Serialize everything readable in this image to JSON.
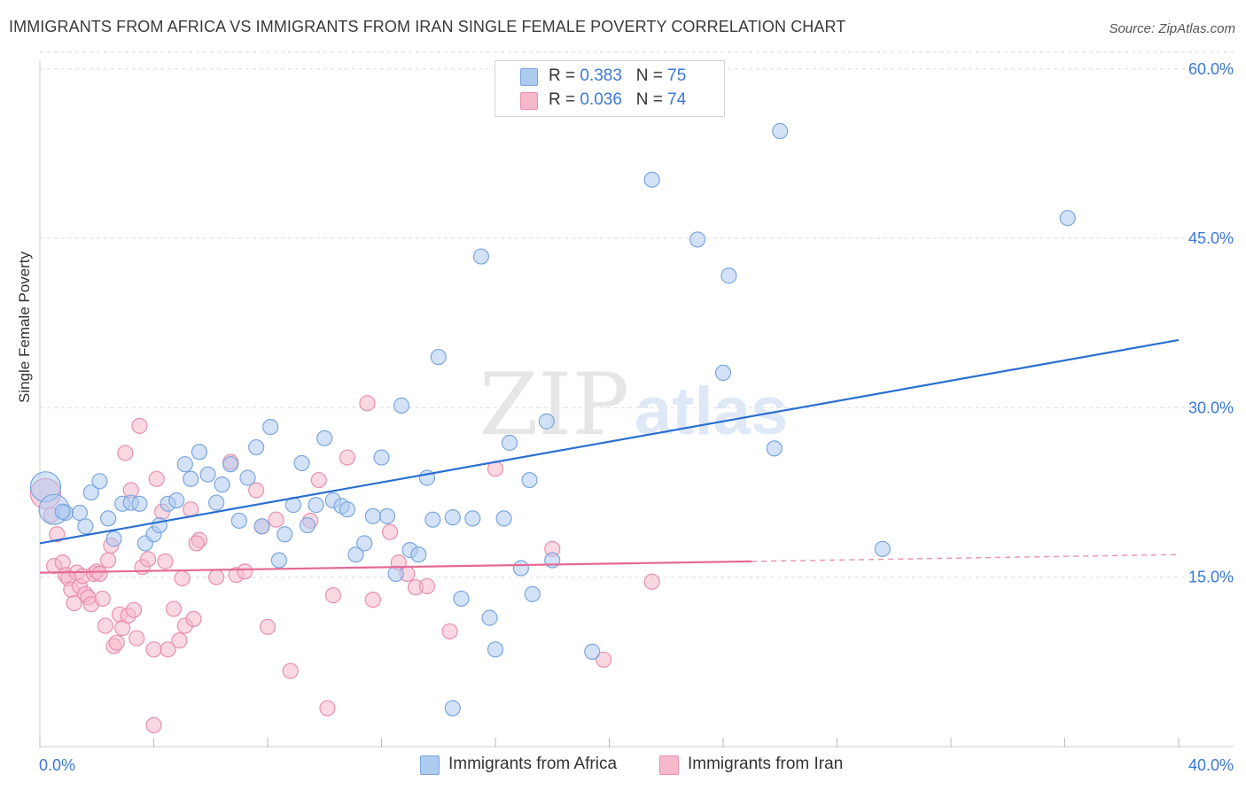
{
  "title": "IMMIGRANTS FROM AFRICA VS IMMIGRANTS FROM IRAN SINGLE FEMALE POVERTY CORRELATION CHART",
  "source": "Source: ZipAtlas.com",
  "watermark": {
    "zip": "ZIP",
    "atlas": "atlas"
  },
  "legend": {
    "africa": {
      "r_label": "R = ",
      "r_value": "0.383",
      "n_label": "N = ",
      "n_value": "75"
    },
    "iran": {
      "r_label": "R = ",
      "r_value": "0.036",
      "n_label": "N = ",
      "n_value": "74"
    }
  },
  "colors": {
    "africa_fill": "#aecbf0",
    "africa_stroke": "#7aa6e0",
    "africa_line": "#2a6fd0",
    "iran_fill": "#f6b8cb",
    "iran_stroke": "#ea8fae",
    "iran_line": "#e56a96",
    "tick_label": "#3b78d8",
    "grid": "#dddddd"
  },
  "chart_data": {
    "type": "scatter",
    "title": "IMMIGRANTS FROM AFRICA VS IMMIGRANTS FROM IRAN SINGLE FEMALE POVERTY CORRELATION CHART",
    "xlabel": "",
    "ylabel": "Single Female Poverty",
    "xlim": [
      0,
      40
    ],
    "ylim": [
      0,
      60
    ],
    "x_tick_labels": [
      {
        "value": 0,
        "label": "0.0%"
      },
      {
        "value": 40,
        "label": "40.0%"
      }
    ],
    "y_tick_labels": [
      {
        "value": 15,
        "label": "15.0%"
      },
      {
        "value": 30,
        "label": "30.0%"
      },
      {
        "value": 45,
        "label": "45.0%"
      },
      {
        "value": 60,
        "label": "60.0%"
      }
    ],
    "series": [
      {
        "name": "Immigrants from Africa",
        "r": 0.383,
        "n": 75,
        "trend": {
          "x": [
            0,
            40
          ],
          "y": [
            18.0,
            36.0
          ],
          "dashed_after": null
        },
        "points": [
          {
            "x": 0.2,
            "y": 23.0,
            "big": true
          },
          {
            "x": 0.5,
            "y": 21.0,
            "big": true
          },
          {
            "x": 0.9,
            "y": 20.7
          },
          {
            "x": 1.4,
            "y": 20.7
          },
          {
            "x": 1.6,
            "y": 19.5
          },
          {
            "x": 1.8,
            "y": 22.5
          },
          {
            "x": 2.1,
            "y": 23.5
          },
          {
            "x": 2.4,
            "y": 20.2
          },
          {
            "x": 2.6,
            "y": 18.4
          },
          {
            "x": 2.9,
            "y": 21.5
          },
          {
            "x": 3.2,
            "y": 21.6
          },
          {
            "x": 3.5,
            "y": 21.5
          },
          {
            "x": 3.7,
            "y": 18.0
          },
          {
            "x": 4.0,
            "y": 18.8
          },
          {
            "x": 4.2,
            "y": 19.6
          },
          {
            "x": 4.5,
            "y": 21.5
          },
          {
            "x": 4.8,
            "y": 21.8
          },
          {
            "x": 5.1,
            "y": 25.0
          },
          {
            "x": 5.3,
            "y": 23.7
          },
          {
            "x": 5.6,
            "y": 26.1
          },
          {
            "x": 5.9,
            "y": 24.1
          },
          {
            "x": 6.2,
            "y": 21.6
          },
          {
            "x": 6.4,
            "y": 23.2
          },
          {
            "x": 6.7,
            "y": 25.0
          },
          {
            "x": 7.0,
            "y": 20.0
          },
          {
            "x": 7.3,
            "y": 23.8
          },
          {
            "x": 7.6,
            "y": 26.5
          },
          {
            "x": 7.8,
            "y": 19.5
          },
          {
            "x": 8.1,
            "y": 28.3
          },
          {
            "x": 8.4,
            "y": 16.5
          },
          {
            "x": 8.6,
            "y": 18.8
          },
          {
            "x": 8.9,
            "y": 21.4
          },
          {
            "x": 9.2,
            "y": 25.1
          },
          {
            "x": 9.4,
            "y": 19.6
          },
          {
            "x": 9.7,
            "y": 21.4
          },
          {
            "x": 10.0,
            "y": 27.3
          },
          {
            "x": 10.3,
            "y": 21.8
          },
          {
            "x": 10.6,
            "y": 21.3
          },
          {
            "x": 10.8,
            "y": 21.0
          },
          {
            "x": 11.1,
            "y": 17.0
          },
          {
            "x": 11.4,
            "y": 18.0
          },
          {
            "x": 11.7,
            "y": 20.4
          },
          {
            "x": 12.0,
            "y": 25.6
          },
          {
            "x": 12.2,
            "y": 20.4
          },
          {
            "x": 12.5,
            "y": 15.3
          },
          {
            "x": 12.7,
            "y": 30.2
          },
          {
            "x": 13.0,
            "y": 17.4
          },
          {
            "x": 13.3,
            "y": 17.0
          },
          {
            "x": 13.6,
            "y": 23.8
          },
          {
            "x": 13.8,
            "y": 20.1
          },
          {
            "x": 14.0,
            "y": 34.5
          },
          {
            "x": 14.5,
            "y": 20.3
          },
          {
            "x": 14.8,
            "y": 13.1
          },
          {
            "x": 15.2,
            "y": 20.2
          },
          {
            "x": 15.5,
            "y": 43.4
          },
          {
            "x": 15.8,
            "y": 11.4
          },
          {
            "x": 16.0,
            "y": 8.6
          },
          {
            "x": 16.3,
            "y": 20.2
          },
          {
            "x": 16.5,
            "y": 26.9
          },
          {
            "x": 16.9,
            "y": 15.8
          },
          {
            "x": 17.2,
            "y": 23.6
          },
          {
            "x": 17.3,
            "y": 13.5
          },
          {
            "x": 17.8,
            "y": 28.8
          },
          {
            "x": 18.0,
            "y": 16.5
          },
          {
            "x": 19.4,
            "y": 8.4
          },
          {
            "x": 14.5,
            "y": 3.4
          },
          {
            "x": 21.5,
            "y": 50.2
          },
          {
            "x": 23.1,
            "y": 44.9
          },
          {
            "x": 24.0,
            "y": 33.1
          },
          {
            "x": 24.2,
            "y": 41.7
          },
          {
            "x": 26.0,
            "y": 54.5
          },
          {
            "x": 25.8,
            "y": 26.4
          },
          {
            "x": 29.6,
            "y": 17.5
          },
          {
            "x": 36.1,
            "y": 46.8
          },
          {
            "x": 0.8,
            "y": 20.8
          }
        ]
      },
      {
        "name": "Immigrants from Iran",
        "r": 0.036,
        "n": 74,
        "trend": {
          "x": [
            0,
            40
          ],
          "y": [
            15.4,
            17.0
          ],
          "dashed_after": 25.0
        },
        "points": [
          {
            "x": 0.2,
            "y": 22.4,
            "big": true
          },
          {
            "x": 0.4,
            "y": 20.5
          },
          {
            "x": 0.5,
            "y": 16.0
          },
          {
            "x": 0.6,
            "y": 18.8
          },
          {
            "x": 0.8,
            "y": 16.3
          },
          {
            "x": 0.9,
            "y": 15.2
          },
          {
            "x": 1.0,
            "y": 14.9
          },
          {
            "x": 1.1,
            "y": 13.9
          },
          {
            "x": 1.2,
            "y": 12.7
          },
          {
            "x": 1.3,
            "y": 15.4
          },
          {
            "x": 1.4,
            "y": 14.2
          },
          {
            "x": 1.5,
            "y": 15.1
          },
          {
            "x": 1.6,
            "y": 13.5
          },
          {
            "x": 1.7,
            "y": 13.2
          },
          {
            "x": 1.8,
            "y": 12.6
          },
          {
            "x": 1.9,
            "y": 15.3
          },
          {
            "x": 2.0,
            "y": 15.5
          },
          {
            "x": 2.1,
            "y": 15.3
          },
          {
            "x": 2.2,
            "y": 13.1
          },
          {
            "x": 2.3,
            "y": 10.7
          },
          {
            "x": 2.4,
            "y": 16.5
          },
          {
            "x": 2.5,
            "y": 17.8
          },
          {
            "x": 2.6,
            "y": 8.9
          },
          {
            "x": 2.7,
            "y": 9.2
          },
          {
            "x": 2.8,
            "y": 11.7
          },
          {
            "x": 2.9,
            "y": 10.5
          },
          {
            "x": 3.0,
            "y": 26.0
          },
          {
            "x": 3.1,
            "y": 11.6
          },
          {
            "x": 3.2,
            "y": 22.7
          },
          {
            "x": 3.3,
            "y": 12.1
          },
          {
            "x": 3.4,
            "y": 9.6
          },
          {
            "x": 3.5,
            "y": 28.4
          },
          {
            "x": 3.6,
            "y": 15.9
          },
          {
            "x": 3.8,
            "y": 16.6
          },
          {
            "x": 4.0,
            "y": 8.6
          },
          {
            "x": 4.1,
            "y": 23.7
          },
          {
            "x": 4.3,
            "y": 20.8
          },
          {
            "x": 4.5,
            "y": 8.6
          },
          {
            "x": 4.7,
            "y": 12.2
          },
          {
            "x": 4.9,
            "y": 9.4
          },
          {
            "x": 5.0,
            "y": 14.9
          },
          {
            "x": 5.1,
            "y": 10.7
          },
          {
            "x": 5.3,
            "y": 21.0
          },
          {
            "x": 5.4,
            "y": 11.3
          },
          {
            "x": 5.6,
            "y": 18.3
          },
          {
            "x": 5.5,
            "y": 18.0
          },
          {
            "x": 6.2,
            "y": 15.0
          },
          {
            "x": 6.7,
            "y": 25.2
          },
          {
            "x": 6.9,
            "y": 15.2
          },
          {
            "x": 7.2,
            "y": 15.5
          },
          {
            "x": 7.6,
            "y": 22.7
          },
          {
            "x": 7.8,
            "y": 19.5
          },
          {
            "x": 8.0,
            "y": 10.6
          },
          {
            "x": 8.3,
            "y": 20.1
          },
          {
            "x": 8.8,
            "y": 6.7
          },
          {
            "x": 9.5,
            "y": 20.0
          },
          {
            "x": 9.8,
            "y": 23.6
          },
          {
            "x": 10.1,
            "y": 3.4
          },
          {
            "x": 10.3,
            "y": 13.4
          },
          {
            "x": 10.8,
            "y": 25.6
          },
          {
            "x": 11.5,
            "y": 30.4
          },
          {
            "x": 11.7,
            "y": 13.0
          },
          {
            "x": 12.3,
            "y": 19.0
          },
          {
            "x": 12.6,
            "y": 16.3
          },
          {
            "x": 12.9,
            "y": 15.3
          },
          {
            "x": 13.2,
            "y": 14.1
          },
          {
            "x": 13.6,
            "y": 14.2
          },
          {
            "x": 14.4,
            "y": 10.2
          },
          {
            "x": 16.0,
            "y": 24.6
          },
          {
            "x": 18.0,
            "y": 17.5
          },
          {
            "x": 19.8,
            "y": 7.7
          },
          {
            "x": 21.5,
            "y": 14.6
          },
          {
            "x": 4.0,
            "y": 1.9
          },
          {
            "x": 4.4,
            "y": 16.4
          }
        ]
      }
    ]
  },
  "bottom_legend": {
    "africa": "Immigrants from Africa",
    "iran": "Immigrants from Iran"
  }
}
